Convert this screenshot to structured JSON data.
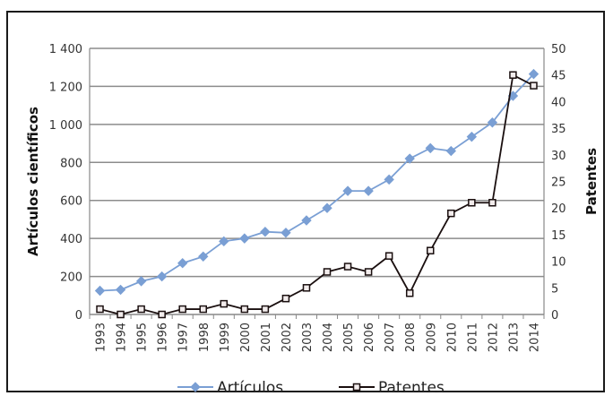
{
  "chart_data": {
    "type": "line",
    "title": "",
    "xlabel": "",
    "ylabel": "Artículos científicos",
    "y2label": "Patentes",
    "ylim": [
      0,
      1400
    ],
    "y2lim": [
      0,
      50
    ],
    "yticks": [
      0,
      200,
      400,
      600,
      800,
      1000,
      1200,
      1400
    ],
    "ytick_labels": [
      "0",
      "200",
      "400",
      "600",
      "800",
      "1 000",
      "1 200",
      "1 400"
    ],
    "y2ticks": [
      0,
      5,
      10,
      15,
      20,
      25,
      30,
      35,
      40,
      45,
      50
    ],
    "grid": true,
    "legend_position": "bottom",
    "categories": [
      "1993",
      "1994",
      "1995",
      "1996",
      "1997",
      "1998",
      "1999",
      "2000",
      "2001",
      "2002",
      "2003",
      "2004",
      "2005",
      "2006",
      "2007",
      "2008",
      "2009",
      "2010",
      "2011",
      "2012",
      "2013",
      "2014"
    ],
    "series": [
      {
        "name": "Artículos",
        "axis": "left",
        "color": "#7a9fd4",
        "marker": "diamond",
        "values": [
          125,
          130,
          175,
          200,
          270,
          305,
          385,
          400,
          435,
          430,
          495,
          560,
          650,
          650,
          710,
          820,
          875,
          860,
          935,
          1010,
          1150,
          1265
        ]
      },
      {
        "name": "Patentes",
        "axis": "right",
        "color": "#1a0f0f",
        "marker": "square",
        "values": [
          1,
          0,
          1,
          0,
          1,
          1,
          2,
          1,
          1,
          3,
          5,
          8,
          9,
          8,
          11,
          4,
          12,
          19,
          21,
          21,
          45,
          43
        ]
      }
    ]
  }
}
